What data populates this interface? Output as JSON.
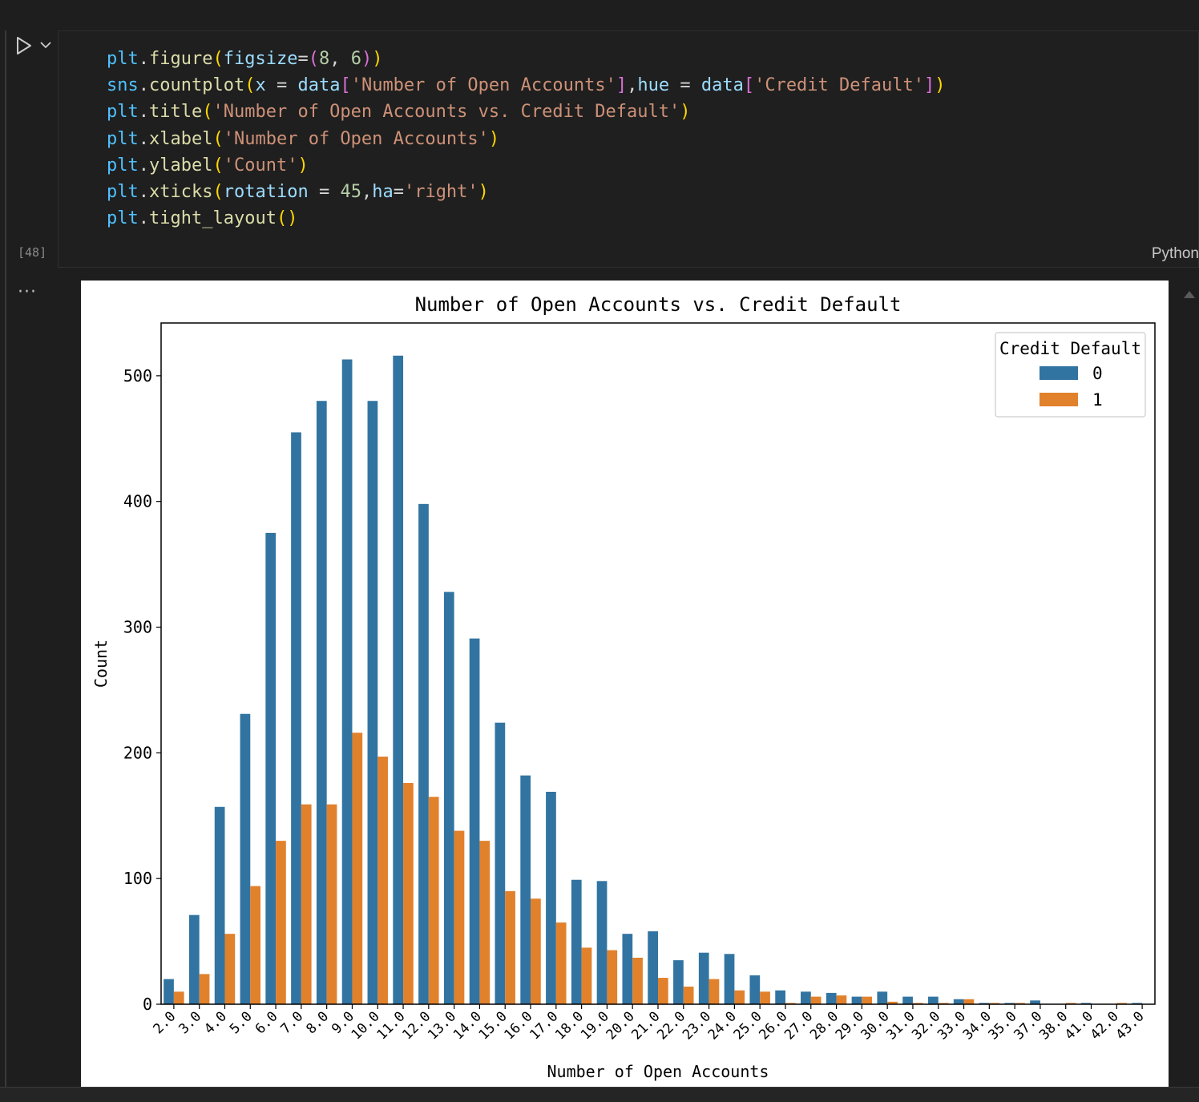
{
  "cell": {
    "execution_count": "[48]",
    "language": "Python",
    "output_ellipsis": "···",
    "run_icon": "play-icon",
    "chevron_icon": "chevron-down-icon"
  },
  "code_lines": [
    [
      [
        "plt",
        "obj"
      ],
      [
        ".",
        "op"
      ],
      [
        "figure",
        "fn"
      ],
      [
        "(",
        "p1"
      ],
      [
        "figsize",
        "kw"
      ],
      [
        "=",
        "op"
      ],
      [
        "(",
        "p2"
      ],
      [
        "8",
        "num"
      ],
      [
        ", ",
        "op"
      ],
      [
        "6",
        "num"
      ],
      [
        ")",
        "p2"
      ],
      [
        ")",
        "p1"
      ]
    ],
    [
      [
        "sns",
        "obj"
      ],
      [
        ".",
        "op"
      ],
      [
        "countplot",
        "fn"
      ],
      [
        "(",
        "p1"
      ],
      [
        "x",
        "kw"
      ],
      [
        " = ",
        "op"
      ],
      [
        "data",
        "kw"
      ],
      [
        "[",
        "p2"
      ],
      [
        "'Number of Open Accounts'",
        "str"
      ],
      [
        "]",
        "p2"
      ],
      [
        ",",
        "op"
      ],
      [
        "hue",
        "kw"
      ],
      [
        " = ",
        "op"
      ],
      [
        "data",
        "kw"
      ],
      [
        "[",
        "p2"
      ],
      [
        "'Credit Default'",
        "str"
      ],
      [
        "]",
        "p2"
      ],
      [
        ")",
        "p1"
      ]
    ],
    [
      [
        "plt",
        "obj"
      ],
      [
        ".",
        "op"
      ],
      [
        "title",
        "fn"
      ],
      [
        "(",
        "p1"
      ],
      [
        "'Number of Open Accounts vs. Credit Default'",
        "str"
      ],
      [
        ")",
        "p1"
      ]
    ],
    [
      [
        "plt",
        "obj"
      ],
      [
        ".",
        "op"
      ],
      [
        "xlabel",
        "fn"
      ],
      [
        "(",
        "p1"
      ],
      [
        "'Number of Open Accounts'",
        "str"
      ],
      [
        ")",
        "p1"
      ]
    ],
    [
      [
        "plt",
        "obj"
      ],
      [
        ".",
        "op"
      ],
      [
        "ylabel",
        "fn"
      ],
      [
        "(",
        "p1"
      ],
      [
        "'Count'",
        "str"
      ],
      [
        ")",
        "p1"
      ]
    ],
    [
      [
        "plt",
        "obj"
      ],
      [
        ".",
        "op"
      ],
      [
        "xticks",
        "fn"
      ],
      [
        "(",
        "p1"
      ],
      [
        "rotation",
        "kw"
      ],
      [
        " = ",
        "op"
      ],
      [
        "45",
        "num"
      ],
      [
        ",",
        "op"
      ],
      [
        "ha",
        "kw"
      ],
      [
        "=",
        "op"
      ],
      [
        "'right'",
        "str"
      ],
      [
        ")",
        "p1"
      ]
    ],
    [
      [
        "plt",
        "obj"
      ],
      [
        ".",
        "op"
      ],
      [
        "tight_layout",
        "fn"
      ],
      [
        "(",
        "p1"
      ],
      [
        ")",
        "p1"
      ]
    ]
  ],
  "syntax_colors": {
    "obj": "#4fc1ff",
    "fn": "#dcdcaa",
    "p1": "#ffd700",
    "p2": "#da70d6",
    "kw": "#9cdcfe",
    "str": "#ce9178",
    "num": "#b5cea8",
    "op": "#d4d4d4"
  },
  "chart_data": {
    "type": "bar",
    "title": "Number of Open Accounts vs. Credit Default",
    "xlabel": "Number of Open Accounts",
    "ylabel": "Count",
    "ylim": [
      0,
      542
    ],
    "yticks": [
      0,
      100,
      200,
      300,
      400,
      500
    ],
    "grid": false,
    "legend": {
      "title": "Credit Default",
      "placement": "top-right"
    },
    "categories": [
      "2.0",
      "3.0",
      "4.0",
      "5.0",
      "6.0",
      "7.0",
      "8.0",
      "9.0",
      "10.0",
      "11.0",
      "12.0",
      "13.0",
      "14.0",
      "15.0",
      "16.0",
      "17.0",
      "18.0",
      "19.0",
      "20.0",
      "21.0",
      "22.0",
      "23.0",
      "24.0",
      "25.0",
      "26.0",
      "27.0",
      "28.0",
      "29.0",
      "30.0",
      "31.0",
      "32.0",
      "33.0",
      "34.0",
      "35.0",
      "37.0",
      "38.0",
      "41.0",
      "42.0",
      "43.0"
    ],
    "series": [
      {
        "name": "0",
        "color": "#3274a1",
        "values": [
          20,
          71,
          157,
          231,
          375,
          455,
          480,
          513,
          480,
          516,
          398,
          328,
          291,
          224,
          182,
          169,
          99,
          98,
          56,
          58,
          35,
          41,
          40,
          23,
          11,
          10,
          9,
          6,
          10,
          6,
          6,
          4,
          1,
          1,
          3,
          0,
          1,
          0,
          1
        ]
      },
      {
        "name": "1",
        "color": "#e1812c",
        "values": [
          10,
          24,
          56,
          94,
          130,
          159,
          159,
          216,
          197,
          176,
          165,
          138,
          130,
          90,
          84,
          65,
          45,
          43,
          37,
          21,
          14,
          20,
          11,
          10,
          1,
          6,
          7,
          6,
          2,
          1,
          1,
          4,
          1,
          1,
          0,
          1,
          0,
          1,
          0
        ]
      }
    ]
  }
}
